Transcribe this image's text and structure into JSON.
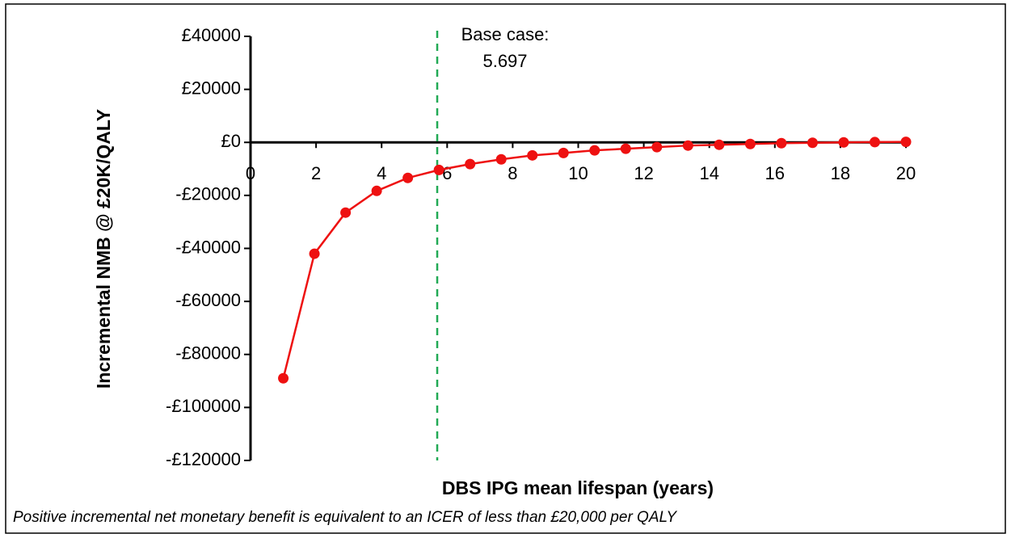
{
  "chart_data": {
    "type": "line",
    "x_label": "DBS IPG mean lifespan (years)",
    "y_label": "Incremental NMB @ £20K/QALY",
    "note": "Positive incremental net monetary benefit is equivalent to an ICER of less than £20,000 per QALY",
    "annotation": [
      "Base case:",
      "5.697"
    ],
    "vline": 5.697,
    "vline_color": "#22aa55",
    "x": [
      1,
      1.95,
      2.9,
      3.85,
      4.8,
      5.75,
      6.7,
      7.65,
      8.6,
      9.55,
      10.5,
      11.45,
      12.4,
      13.35,
      14.3,
      15.25,
      16.2,
      17.15,
      18.1,
      19.05,
      20
    ],
    "series": [
      {
        "color": "#ee1111",
        "values": [
          -89000,
          -42000,
          -26500,
          -18300,
          -13400,
          -10400,
          -8200,
          -6400,
          -4900,
          -4000,
          -3000,
          -2400,
          -1800,
          -1200,
          -900,
          -600,
          -300,
          -150,
          0,
          100,
          200
        ]
      }
    ],
    "xlim": [
      0,
      20
    ],
    "xticks": [
      0,
      2,
      4,
      6,
      8,
      10,
      12,
      14,
      16,
      18,
      20
    ],
    "ylim": [
      -120000,
      40000
    ],
    "yticks": [
      {
        "value": 40000,
        "label": "£40000"
      },
      {
        "value": 20000,
        "label": "£20000"
      },
      {
        "value": 0,
        "label": "£0"
      },
      {
        "value": -20000,
        "label": "-£20000"
      },
      {
        "value": -40000,
        "label": "-£40000"
      },
      {
        "value": -60000,
        "label": "-£60000"
      },
      {
        "value": -80000,
        "label": "-£80000"
      },
      {
        "value": -100000,
        "label": "-£100000"
      },
      {
        "value": -120000,
        "label": "-£120000"
      }
    ]
  }
}
